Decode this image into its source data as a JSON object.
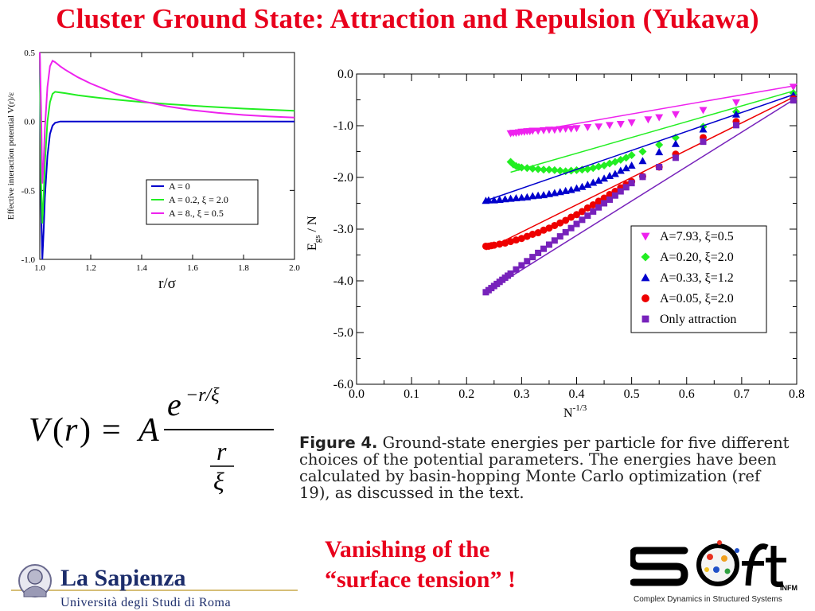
{
  "title": "Cluster Ground State: Attraction and Repulsion (Yukawa)",
  "colors": {
    "title": "#e8001c",
    "blue": "#0000cc",
    "green": "#22ee22",
    "magenta": "#ee22ee",
    "red": "#ee0000",
    "purple": "#7722bb",
    "redBlue": "#1a1aff"
  },
  "chart_data": [
    {
      "type": "line",
      "xlabel": "r/σ",
      "ylabel": "Effective interaction potential V(r)/ε",
      "xlim": [
        1.0,
        2.0
      ],
      "ylim": [
        -1.0,
        0.5
      ],
      "xticks": [
        "1.0",
        "1.2",
        "1.4",
        "1.6",
        "1.8",
        "2.0"
      ],
      "yticks": [
        "0.5",
        "0.0",
        "-0.5",
        "-1.0"
      ],
      "legend_position": "center-right",
      "series": [
        {
          "name": "A = 0",
          "color": "#0000cc",
          "x": [
            1.0,
            1.005,
            1.01,
            1.015,
            1.02,
            1.03,
            1.04,
            1.05,
            1.06,
            1.08,
            1.1,
            1.15,
            1.2,
            1.4,
            1.6,
            1.8,
            2.0
          ],
          "y": [
            0.5,
            -0.6,
            -1.0,
            -0.8,
            -0.55,
            -0.25,
            -0.09,
            -0.03,
            -0.01,
            0.0,
            0.0,
            0.0,
            0.0,
            0.0,
            0.0,
            0.0,
            0.0
          ]
        },
        {
          "name": "A = 0.2, ξ = 2.0",
          "color": "#22ee22",
          "x": [
            1.0,
            1.005,
            1.01,
            1.015,
            1.02,
            1.03,
            1.04,
            1.05,
            1.06,
            1.08,
            1.1,
            1.15,
            1.2,
            1.3,
            1.4,
            1.5,
            1.6,
            1.7,
            1.8,
            1.9,
            2.0
          ],
          "y": [
            0.5,
            -0.45,
            -0.74,
            -0.55,
            -0.3,
            0.0,
            0.14,
            0.2,
            0.215,
            0.21,
            0.205,
            0.19,
            0.178,
            0.158,
            0.141,
            0.127,
            0.114,
            0.103,
            0.093,
            0.085,
            0.077
          ]
        },
        {
          "name": "A = 8.,   ξ = 0.5",
          "color": "#ee22ee",
          "x": [
            1.0,
            1.005,
            1.01,
            1.015,
            1.02,
            1.03,
            1.04,
            1.05,
            1.06,
            1.08,
            1.1,
            1.15,
            1.2,
            1.3,
            1.4,
            1.5,
            1.6,
            1.7,
            1.8,
            1.9,
            2.0
          ],
          "y": [
            0.5,
            0.1,
            -0.45,
            -0.3,
            -0.05,
            0.25,
            0.4,
            0.44,
            0.43,
            0.4,
            0.375,
            0.32,
            0.275,
            0.2,
            0.148,
            0.11,
            0.082,
            0.062,
            0.047,
            0.036,
            0.028
          ]
        }
      ]
    },
    {
      "type": "scatter",
      "xlabel": "N^-1/3",
      "ylabel": "E_gs / N",
      "xlim": [
        0.0,
        0.8
      ],
      "ylim": [
        -6.0,
        0.0
      ],
      "xticks": [
        "0.0",
        "0.1",
        "0.2",
        "0.3",
        "0.4",
        "0.5",
        "0.6",
        "0.7",
        "0.8"
      ],
      "yticks": [
        "0.0",
        "-1.0",
        "-2.0",
        "-3.0",
        "-4.0",
        "-5.0",
        "-6.0"
      ],
      "legend_position": "center-right",
      "series": [
        {
          "name": "A=7.93, ξ=0.5",
          "color": "#ee22ee",
          "marker": "triangle-down",
          "fit": [
            [
              0.28,
              -1.18
            ],
            [
              0.794,
              -0.23
            ]
          ],
          "x": [
            0.28,
            0.285,
            0.29,
            0.295,
            0.3,
            0.305,
            0.31,
            0.315,
            0.32,
            0.33,
            0.34,
            0.35,
            0.36,
            0.37,
            0.38,
            0.39,
            0.4,
            0.42,
            0.44,
            0.46,
            0.48,
            0.5,
            0.53,
            0.55,
            0.58,
            0.63,
            0.69,
            0.794
          ],
          "y": [
            -1.15,
            -1.14,
            -1.14,
            -1.13,
            -1.12,
            -1.12,
            -1.11,
            -1.11,
            -1.1,
            -1.1,
            -1.09,
            -1.08,
            -1.08,
            -1.07,
            -1.06,
            -1.06,
            -1.05,
            -1.03,
            -1.02,
            -0.99,
            -0.97,
            -0.94,
            -0.88,
            -0.84,
            -0.78,
            -0.7,
            -0.55,
            -0.25
          ]
        },
        {
          "name": "A=0.20, ξ=2.0",
          "color": "#22ee22",
          "marker": "diamond",
          "fit": [
            [
              0.28,
              -1.9
            ],
            [
              0.794,
              -0.33
            ]
          ],
          "x": [
            0.28,
            0.285,
            0.29,
            0.295,
            0.3,
            0.31,
            0.32,
            0.33,
            0.34,
            0.35,
            0.36,
            0.37,
            0.38,
            0.39,
            0.4,
            0.41,
            0.42,
            0.43,
            0.44,
            0.45,
            0.46,
            0.47,
            0.48,
            0.49,
            0.5,
            0.52,
            0.55,
            0.58,
            0.63,
            0.69,
            0.794
          ],
          "y": [
            -1.7,
            -1.75,
            -1.78,
            -1.8,
            -1.81,
            -1.82,
            -1.83,
            -1.84,
            -1.85,
            -1.85,
            -1.86,
            -1.87,
            -1.88,
            -1.87,
            -1.86,
            -1.85,
            -1.84,
            -1.82,
            -1.79,
            -1.77,
            -1.73,
            -1.7,
            -1.66,
            -1.62,
            -1.57,
            -1.5,
            -1.37,
            -1.23,
            -1.02,
            -0.73,
            -0.37
          ]
        },
        {
          "name": "A=0.33, ξ=1.2",
          "color": "#0000cc",
          "marker": "triangle-up",
          "fit": [
            [
              0.235,
              -2.45
            ],
            [
              0.794,
              -0.4
            ]
          ],
          "x": [
            0.235,
            0.24,
            0.25,
            0.26,
            0.27,
            0.28,
            0.29,
            0.3,
            0.31,
            0.32,
            0.33,
            0.34,
            0.35,
            0.36,
            0.37,
            0.38,
            0.39,
            0.4,
            0.41,
            0.42,
            0.43,
            0.44,
            0.45,
            0.46,
            0.47,
            0.48,
            0.49,
            0.5,
            0.52,
            0.55,
            0.58,
            0.63,
            0.69,
            0.794
          ],
          "y": [
            -2.45,
            -2.44,
            -2.44,
            -2.43,
            -2.42,
            -2.41,
            -2.4,
            -2.39,
            -2.38,
            -2.36,
            -2.35,
            -2.34,
            -2.32,
            -2.3,
            -2.28,
            -2.26,
            -2.24,
            -2.21,
            -2.18,
            -2.14,
            -2.1,
            -2.06,
            -2.02,
            -1.97,
            -1.93,
            -1.87,
            -1.82,
            -1.77,
            -1.68,
            -1.51,
            -1.35,
            -1.07,
            -0.78,
            -0.41
          ]
        },
        {
          "name": "A=0.05, ξ=2.0",
          "color": "#ee0000",
          "marker": "circle",
          "fit": [
            [
              0.235,
              -3.4
            ],
            [
              0.794,
              -0.45
            ]
          ],
          "x": [
            0.235,
            0.24,
            0.245,
            0.25,
            0.26,
            0.27,
            0.28,
            0.29,
            0.3,
            0.31,
            0.32,
            0.33,
            0.34,
            0.35,
            0.36,
            0.37,
            0.38,
            0.39,
            0.4,
            0.41,
            0.42,
            0.43,
            0.44,
            0.45,
            0.46,
            0.47,
            0.48,
            0.49,
            0.5,
            0.52,
            0.55,
            0.58,
            0.63,
            0.69,
            0.794
          ],
          "y": [
            -3.33,
            -3.33,
            -3.32,
            -3.31,
            -3.29,
            -3.27,
            -3.24,
            -3.21,
            -3.18,
            -3.14,
            -3.1,
            -3.07,
            -3.02,
            -2.98,
            -2.93,
            -2.88,
            -2.83,
            -2.77,
            -2.72,
            -2.66,
            -2.59,
            -2.53,
            -2.46,
            -2.4,
            -2.33,
            -2.27,
            -2.2,
            -2.14,
            -2.08,
            -1.98,
            -1.8,
            -1.55,
            -1.23,
            -0.92,
            -0.48
          ]
        },
        {
          "name": "Only attraction",
          "color": "#7722bb",
          "marker": "square",
          "fit": [
            [
              0.235,
              -4.22
            ],
            [
              0.794,
              -0.5
            ]
          ],
          "x": [
            0.235,
            0.24,
            0.245,
            0.25,
            0.255,
            0.26,
            0.265,
            0.27,
            0.275,
            0.28,
            0.29,
            0.3,
            0.31,
            0.32,
            0.33,
            0.34,
            0.35,
            0.36,
            0.37,
            0.38,
            0.39,
            0.4,
            0.41,
            0.42,
            0.43,
            0.44,
            0.45,
            0.46,
            0.47,
            0.48,
            0.49,
            0.5,
            0.52,
            0.55,
            0.58,
            0.63,
            0.69,
            0.794
          ],
          "y": [
            -4.22,
            -4.18,
            -4.14,
            -4.1,
            -4.06,
            -4.02,
            -3.98,
            -3.94,
            -3.9,
            -3.86,
            -3.78,
            -3.7,
            -3.62,
            -3.54,
            -3.46,
            -3.38,
            -3.3,
            -3.22,
            -3.14,
            -3.06,
            -2.98,
            -2.9,
            -2.82,
            -2.74,
            -2.66,
            -2.58,
            -2.5,
            -2.43,
            -2.35,
            -2.27,
            -2.19,
            -2.11,
            -1.99,
            -1.8,
            -1.62,
            -1.31,
            -0.99,
            -0.51
          ]
        }
      ]
    }
  ],
  "caption": {
    "label": "Figure 4.",
    "text": "Ground-state energies per particle for five different choices of the potential parameters. The energies have been calculated by basin-hopping Monte Carlo optimization (ref 19), as discussed in the text."
  },
  "tagline": {
    "line1": "Vanishing  of the",
    "line2": "“surface   tension” !"
  },
  "sapienza": {
    "name": "La Sapienza",
    "subtitle": "Università degli Studi di Roma"
  },
  "soft": {
    "infm": "INFM",
    "subtitle": "Complex Dynamics in Structured Systems"
  }
}
